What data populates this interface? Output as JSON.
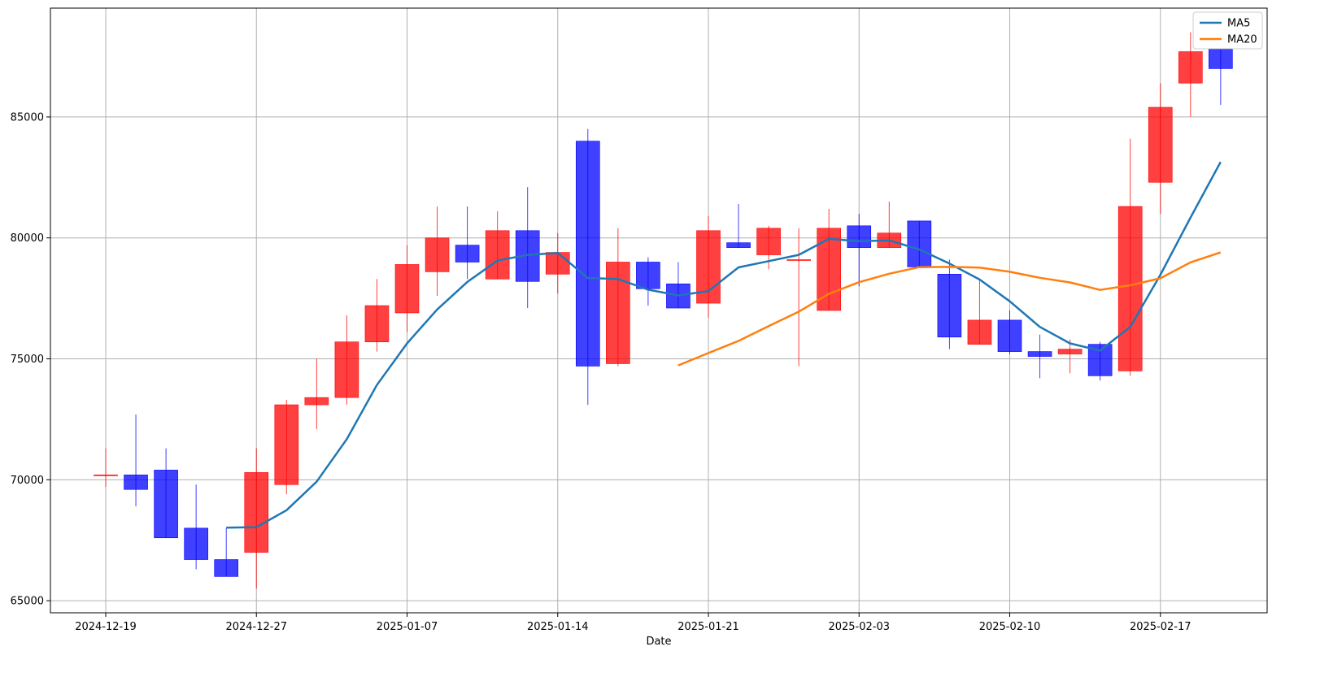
{
  "chart_data": {
    "type": "candlestick",
    "xlabel": "Date",
    "ylim": [
      64500,
      89500
    ],
    "grid": true,
    "legend_position": "top-right",
    "colors": {
      "up": "#ff0000",
      "down": "#0000ff",
      "ma5": "#1f77b4",
      "ma20": "#ff7f0e"
    },
    "x_ticks": [
      {
        "index": 0,
        "label": "2024-12-19"
      },
      {
        "index": 5,
        "label": "2024-12-27"
      },
      {
        "index": 10,
        "label": "2025-01-07"
      },
      {
        "index": 15,
        "label": "2025-01-14"
      },
      {
        "index": 20,
        "label": "2025-01-21"
      },
      {
        "index": 25,
        "label": "2025-02-03"
      },
      {
        "index": 30,
        "label": "2025-02-10"
      },
      {
        "index": 35,
        "label": "2025-02-17"
      }
    ],
    "y_ticks": [
      {
        "value": 65000,
        "label": "65000"
      },
      {
        "value": 70000,
        "label": "70000"
      },
      {
        "value": 75000,
        "label": "75000"
      },
      {
        "value": 80000,
        "label": "80000"
      },
      {
        "value": 85000,
        "label": "85000"
      }
    ],
    "candles": [
      {
        "open": 70200,
        "high": 71300,
        "low": 69700,
        "close": 70200
      },
      {
        "open": 70200,
        "high": 72700,
        "low": 68900,
        "close": 69600
      },
      {
        "open": 70400,
        "high": 71300,
        "low": 67600,
        "close": 67600
      },
      {
        "open": 68000,
        "high": 69800,
        "low": 66300,
        "close": 66700
      },
      {
        "open": 66700,
        "high": 68000,
        "low": 66000,
        "close": 66000
      },
      {
        "open": 67000,
        "high": 71300,
        "low": 65500,
        "close": 70300
      },
      {
        "open": 69800,
        "high": 73300,
        "low": 69400,
        "close": 73100
      },
      {
        "open": 73100,
        "high": 75000,
        "low": 72100,
        "close": 73400
      },
      {
        "open": 73400,
        "high": 76800,
        "low": 73100,
        "close": 75700
      },
      {
        "open": 75700,
        "high": 78300,
        "low": 75300,
        "close": 77200
      },
      {
        "open": 76900,
        "high": 79700,
        "low": 76100,
        "close": 78900
      },
      {
        "open": 78600,
        "high": 81300,
        "low": 77600,
        "close": 80000
      },
      {
        "open": 79700,
        "high": 81300,
        "low": 78300,
        "close": 79000
      },
      {
        "open": 78300,
        "high": 81100,
        "low": 78300,
        "close": 80300
      },
      {
        "open": 80300,
        "high": 82100,
        "low": 77100,
        "close": 78200
      },
      {
        "open": 78500,
        "high": 80200,
        "low": 77700,
        "close": 79400
      },
      {
        "open": 84000,
        "high": 84500,
        "low": 73100,
        "close": 74700
      },
      {
        "open": 74800,
        "high": 80400,
        "low": 74700,
        "close": 79000
      },
      {
        "open": 79000,
        "high": 79200,
        "low": 77200,
        "close": 77900
      },
      {
        "open": 78100,
        "high": 79000,
        "low": 77100,
        "close": 77100
      },
      {
        "open": 77300,
        "high": 80900,
        "low": 76700,
        "close": 80300
      },
      {
        "open": 79800,
        "high": 81400,
        "low": 79600,
        "close": 79600
      },
      {
        "open": 79300,
        "high": 80500,
        "low": 78700,
        "close": 80400
      },
      {
        "open": 79100,
        "high": 80400,
        "low": 74700,
        "close": 79100
      },
      {
        "open": 77000,
        "high": 81200,
        "low": 77000,
        "close": 80400
      },
      {
        "open": 80500,
        "high": 81000,
        "low": 78000,
        "close": 79600
      },
      {
        "open": 79600,
        "high": 81500,
        "low": 79600,
        "close": 80200
      },
      {
        "open": 80700,
        "high": 80700,
        "low": 78800,
        "close": 78800
      },
      {
        "open": 78500,
        "high": 79100,
        "low": 75400,
        "close": 75900
      },
      {
        "open": 75600,
        "high": 78300,
        "low": 75600,
        "close": 76600
      },
      {
        "open": 76600,
        "high": 77000,
        "low": 75200,
        "close": 75300
      },
      {
        "open": 75300,
        "high": 76000,
        "low": 74200,
        "close": 75100
      },
      {
        "open": 75200,
        "high": 75800,
        "low": 74400,
        "close": 75400
      },
      {
        "open": 75600,
        "high": 75700,
        "low": 74100,
        "close": 74300
      },
      {
        "open": 74500,
        "high": 84100,
        "low": 74300,
        "close": 81300
      },
      {
        "open": 82300,
        "high": 86400,
        "low": 81000,
        "close": 85400
      },
      {
        "open": 86400,
        "high": 88500,
        "low": 85000,
        "close": 87700
      },
      {
        "open": 87800,
        "high": 87800,
        "low": 85500,
        "close": 87000
      }
    ],
    "series": [
      {
        "name": "MA5",
        "start_index": 4,
        "values": [
          68020,
          68040,
          68740,
          69920,
          71680,
          73920,
          75640,
          77040,
          78180,
          79060,
          79300,
          79380,
          78340,
          78300,
          77860,
          77620,
          77800,
          78780,
          79040,
          79300,
          79960,
          79860,
          79900,
          79520,
          78940,
          78280,
          77380,
          76320,
          75640,
          75340,
          76320,
          78480,
          80840,
          83140
        ]
      },
      {
        "name": "MA20",
        "start_index": 19,
        "values": [
          74730,
          75240,
          75740,
          76350,
          76950,
          77690,
          78170,
          78520,
          78790,
          78800,
          78770,
          78600,
          78350,
          78160,
          77850,
          78040,
          78330,
          78990,
          79400
        ]
      }
    ]
  }
}
